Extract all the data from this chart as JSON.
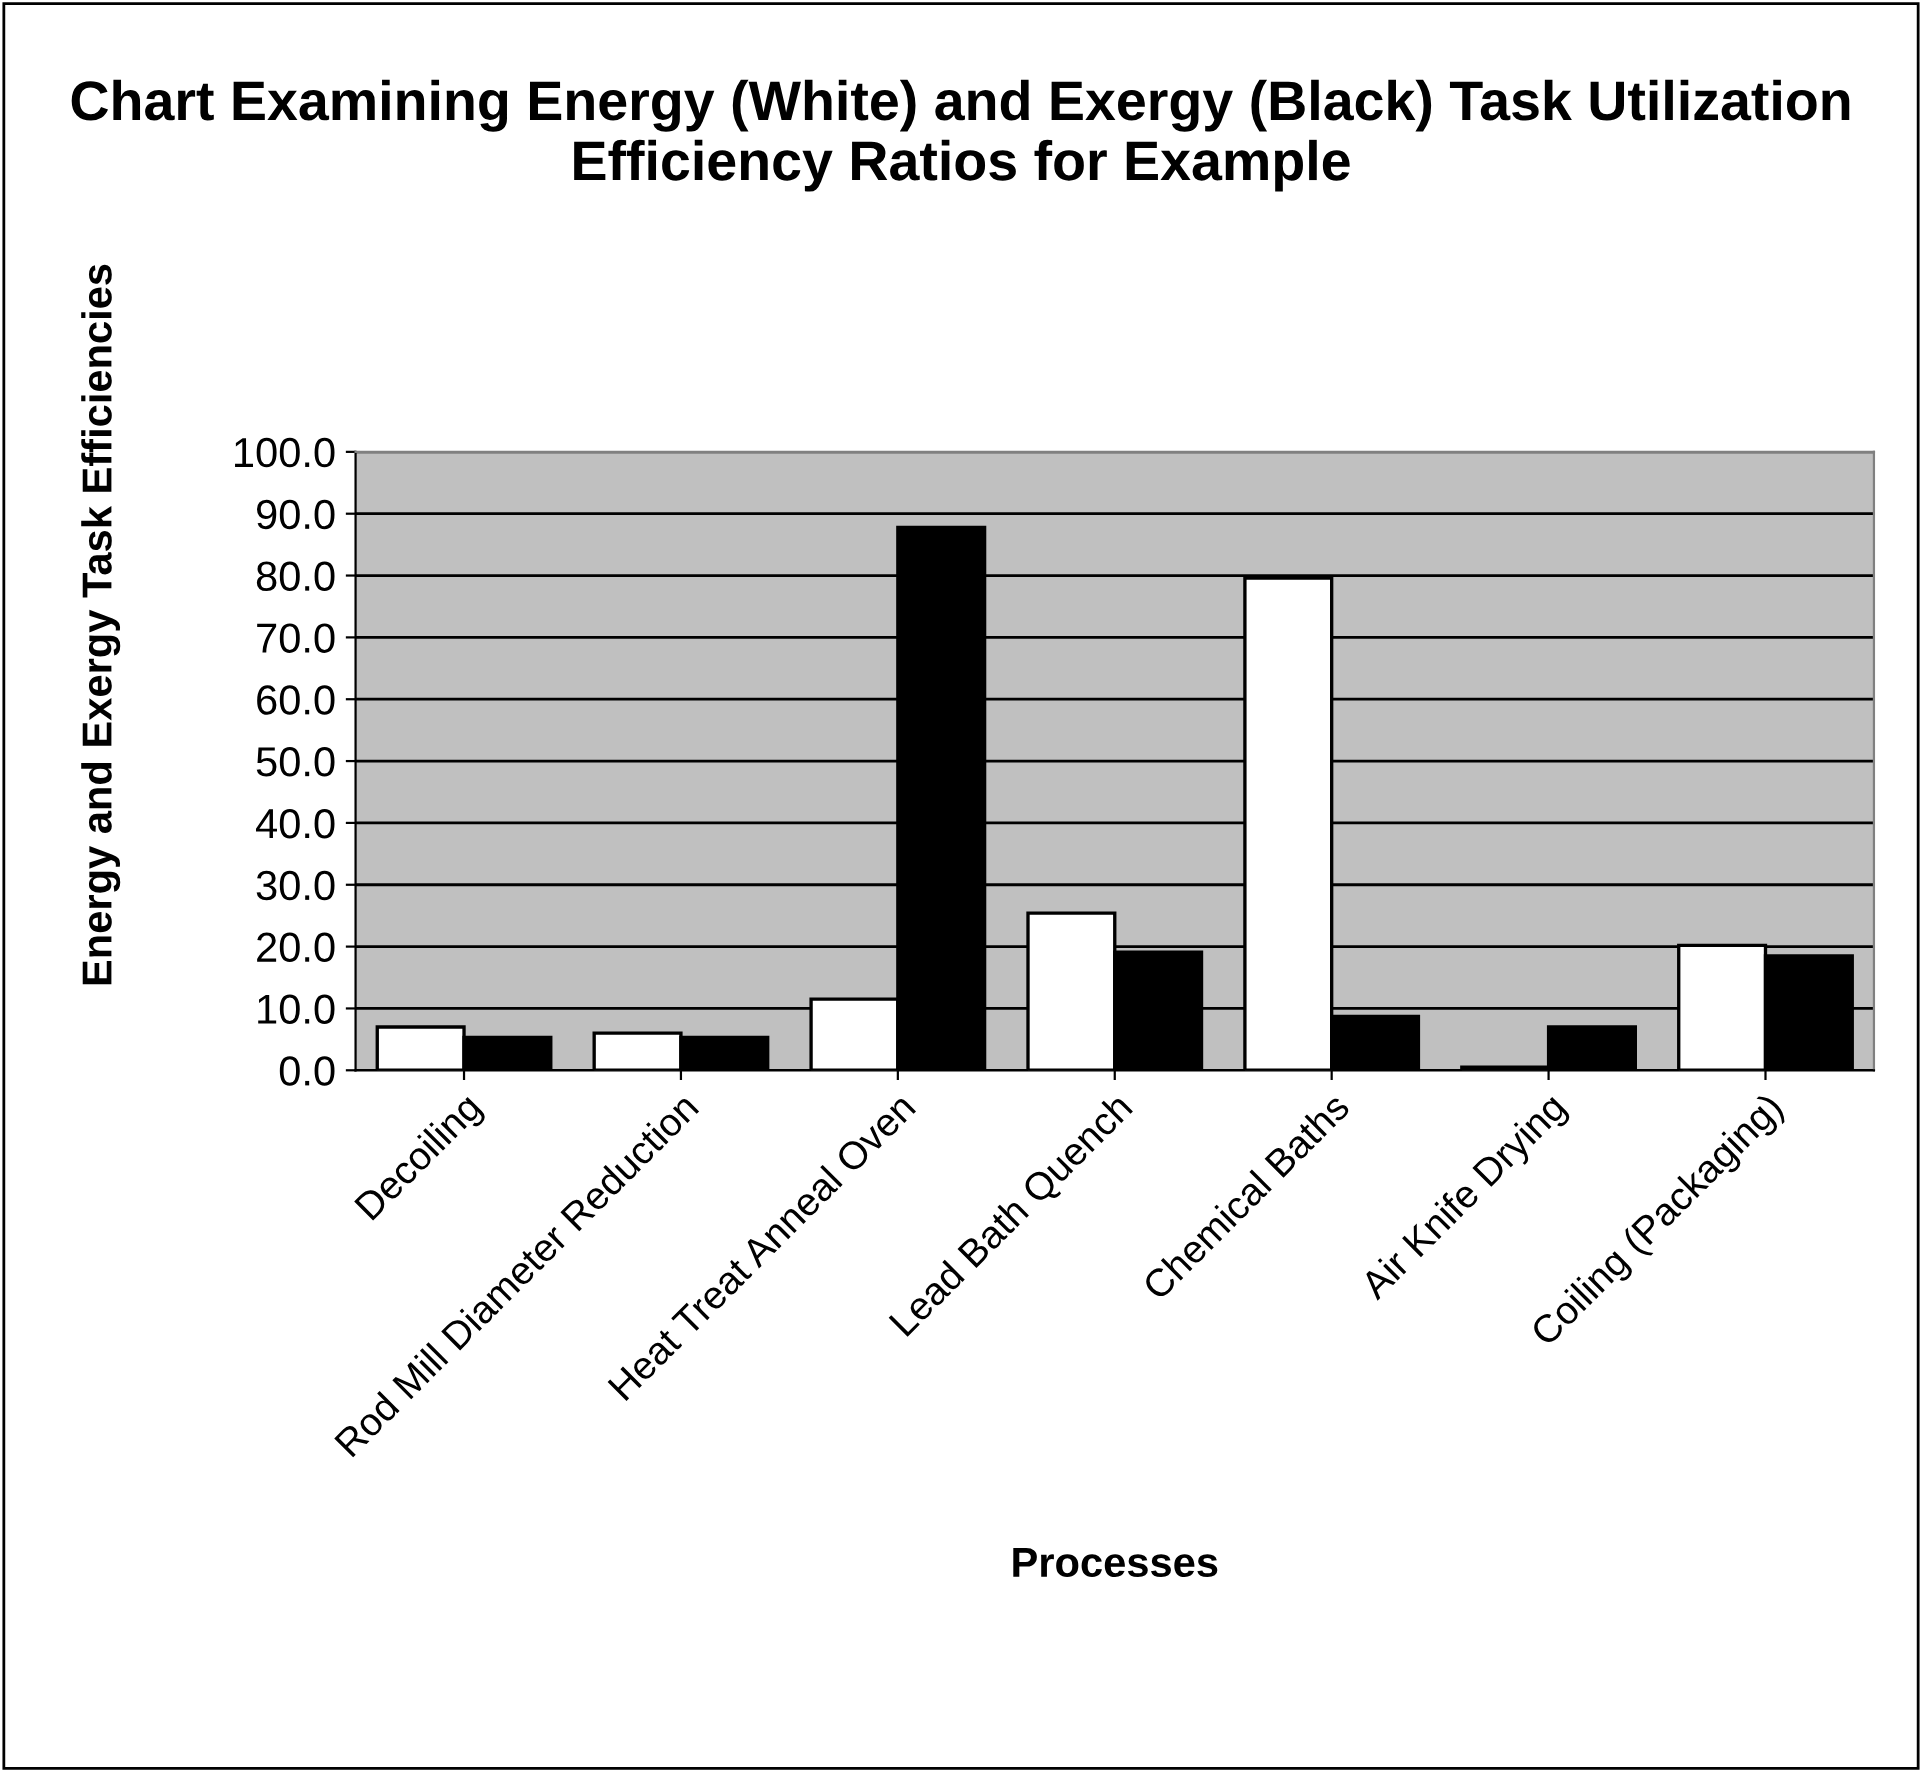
{
  "chart_data": {
    "type": "bar",
    "title": "Chart Examining Energy (White) and Exergy (Black) Task Utilization Efficiency Ratios for Example",
    "xlabel": "Processes",
    "ylabel": "Energy and Exergy Task Efficiencies",
    "categories": [
      "Decoiling",
      "Rod Mill Diameter Reduction",
      "Heat Treat Anneal Oven",
      "Lead Bath Quench",
      "Chemical Baths",
      "Air Knife Drying",
      "Coiling (Packaging)"
    ],
    "series": [
      {
        "color": "#ffffff",
        "values": [
          7.0,
          6.0,
          11.5,
          25.4,
          79.6,
          0.5,
          20.2
        ]
      },
      {
        "color": "#000000",
        "values": [
          5.3,
          5.3,
          87.8,
          19.1,
          8.7,
          7.0,
          18.5
        ]
      }
    ],
    "ylim": [
      0,
      100
    ],
    "yticks": [
      {
        "value": 0,
        "label": "0.0"
      },
      {
        "value": 10,
        "label": "10.0"
      },
      {
        "value": 20,
        "label": "20.0"
      },
      {
        "value": 30,
        "label": "30.0"
      },
      {
        "value": 40,
        "label": "40.0"
      },
      {
        "value": 50,
        "label": "50.0"
      },
      {
        "value": 60,
        "label": "60.0"
      },
      {
        "value": 70,
        "label": "70.0"
      },
      {
        "value": 80,
        "label": "80.0"
      },
      {
        "value": 90,
        "label": "90.0"
      },
      {
        "value": 100,
        "label": "100.0"
      }
    ],
    "grid": "y"
  }
}
